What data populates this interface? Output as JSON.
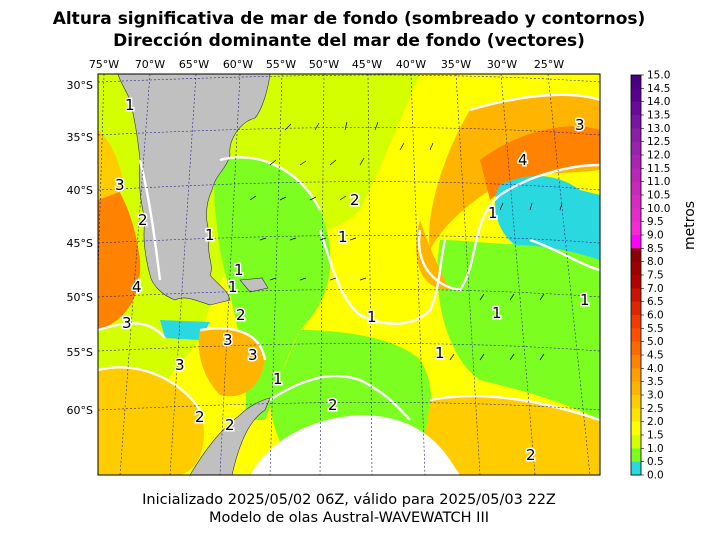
{
  "title_line1": "Altura significativa de mar de fondo (sombreado y contornos)",
  "title_line2": "Dirección dominante del mar de fondo (vectores)",
  "footer_line1": "Inicializado 2025/05/02 06Z, válido para 2025/05/03 22Z",
  "footer_line2": "Modelo de olas Austral-WAVEWATCH III",
  "lon_labels": [
    "75°W",
    "70°W",
    "65°W",
    "60°W",
    "55°W",
    "50°W",
    "45°W",
    "40°W",
    "35°W",
    "30°W",
    "25°W"
  ],
  "lat_labels": [
    "30°S",
    "35°S",
    "40°S",
    "45°S",
    "50°S",
    "55°S",
    "60°S"
  ],
  "colorbar": {
    "units": "metros",
    "ticks": [
      "15.0",
      "14.5",
      "14.0",
      "13.5",
      "13.0",
      "12.5",
      "12.0",
      "11.5",
      "11.0",
      "10.5",
      "10.0",
      "9.5",
      "9.0",
      "8.5",
      "8.0",
      "7.5",
      "7.0",
      "6.5",
      "6.0",
      "5.5",
      "5.0",
      "4.5",
      "4.0",
      "3.5",
      "3.0",
      "2.5",
      "2.0",
      "1.5",
      "1.0",
      "0.5",
      "0.0"
    ],
    "colors": [
      "#4b0082",
      "#5a0090",
      "#6a0a9a",
      "#7a15a2",
      "#8a1ea8",
      "#9a22ae",
      "#aa24b2",
      "#ba26b6",
      "#ca28ba",
      "#d82ac0",
      "#e62cc8",
      "#f22ad8",
      "#ff00ff",
      "#8b0000",
      "#a00000",
      "#b40000",
      "#c81400",
      "#dc2800",
      "#f03c00",
      "#ff5000",
      "#ff6a00",
      "#ff8200",
      "#ff9c00",
      "#ffb400",
      "#ffcc00",
      "#ffe400",
      "#ffff00",
      "#d4ff00",
      "#7cff20",
      "#2ad8e0"
    ]
  },
  "colors": {
    "land": "#c0c0c0",
    "contour": "#ffffff"
  },
  "contour_labels": [
    "1",
    "1",
    "2",
    "2",
    "3",
    "3",
    "4",
    "4",
    "1",
    "1",
    "2",
    "3",
    "3",
    "1",
    "1",
    "1",
    "1",
    "1",
    "1",
    "1",
    "2",
    "2",
    "2",
    "3",
    "3",
    "2"
  ]
}
